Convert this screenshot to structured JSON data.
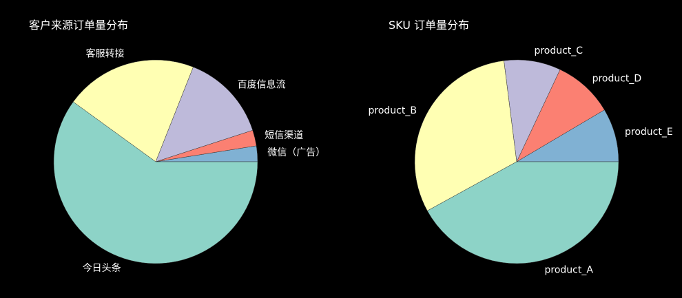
{
  "chart_data": [
    {
      "type": "pie",
      "title": "客户来源订单量分布",
      "slices": [
        {
          "label": "微信（广告）",
          "value": 2.5,
          "color": "#80b1d3"
        },
        {
          "label": "短信渠道",
          "value": 2.5,
          "color": "#fb8072"
        },
        {
          "label": "百度信息流",
          "value": 14,
          "color": "#bebada"
        },
        {
          "label": "客服转接",
          "value": 21,
          "color": "#ffffb3"
        },
        {
          "label": "今日头条",
          "value": 60,
          "color": "#8dd3c7"
        }
      ]
    },
    {
      "type": "pie",
      "title": "SKU 订单量分布",
      "slices": [
        {
          "label": "product_E",
          "value": 8.5,
          "color": "#80b1d3"
        },
        {
          "label": "product_D",
          "value": 9.5,
          "color": "#fb8072"
        },
        {
          "label": "product_C",
          "value": 9,
          "color": "#bebada"
        },
        {
          "label": "product_B",
          "value": 31,
          "color": "#ffffb3"
        },
        {
          "label": "product_A",
          "value": 42,
          "color": "#8dd3c7"
        }
      ]
    }
  ]
}
